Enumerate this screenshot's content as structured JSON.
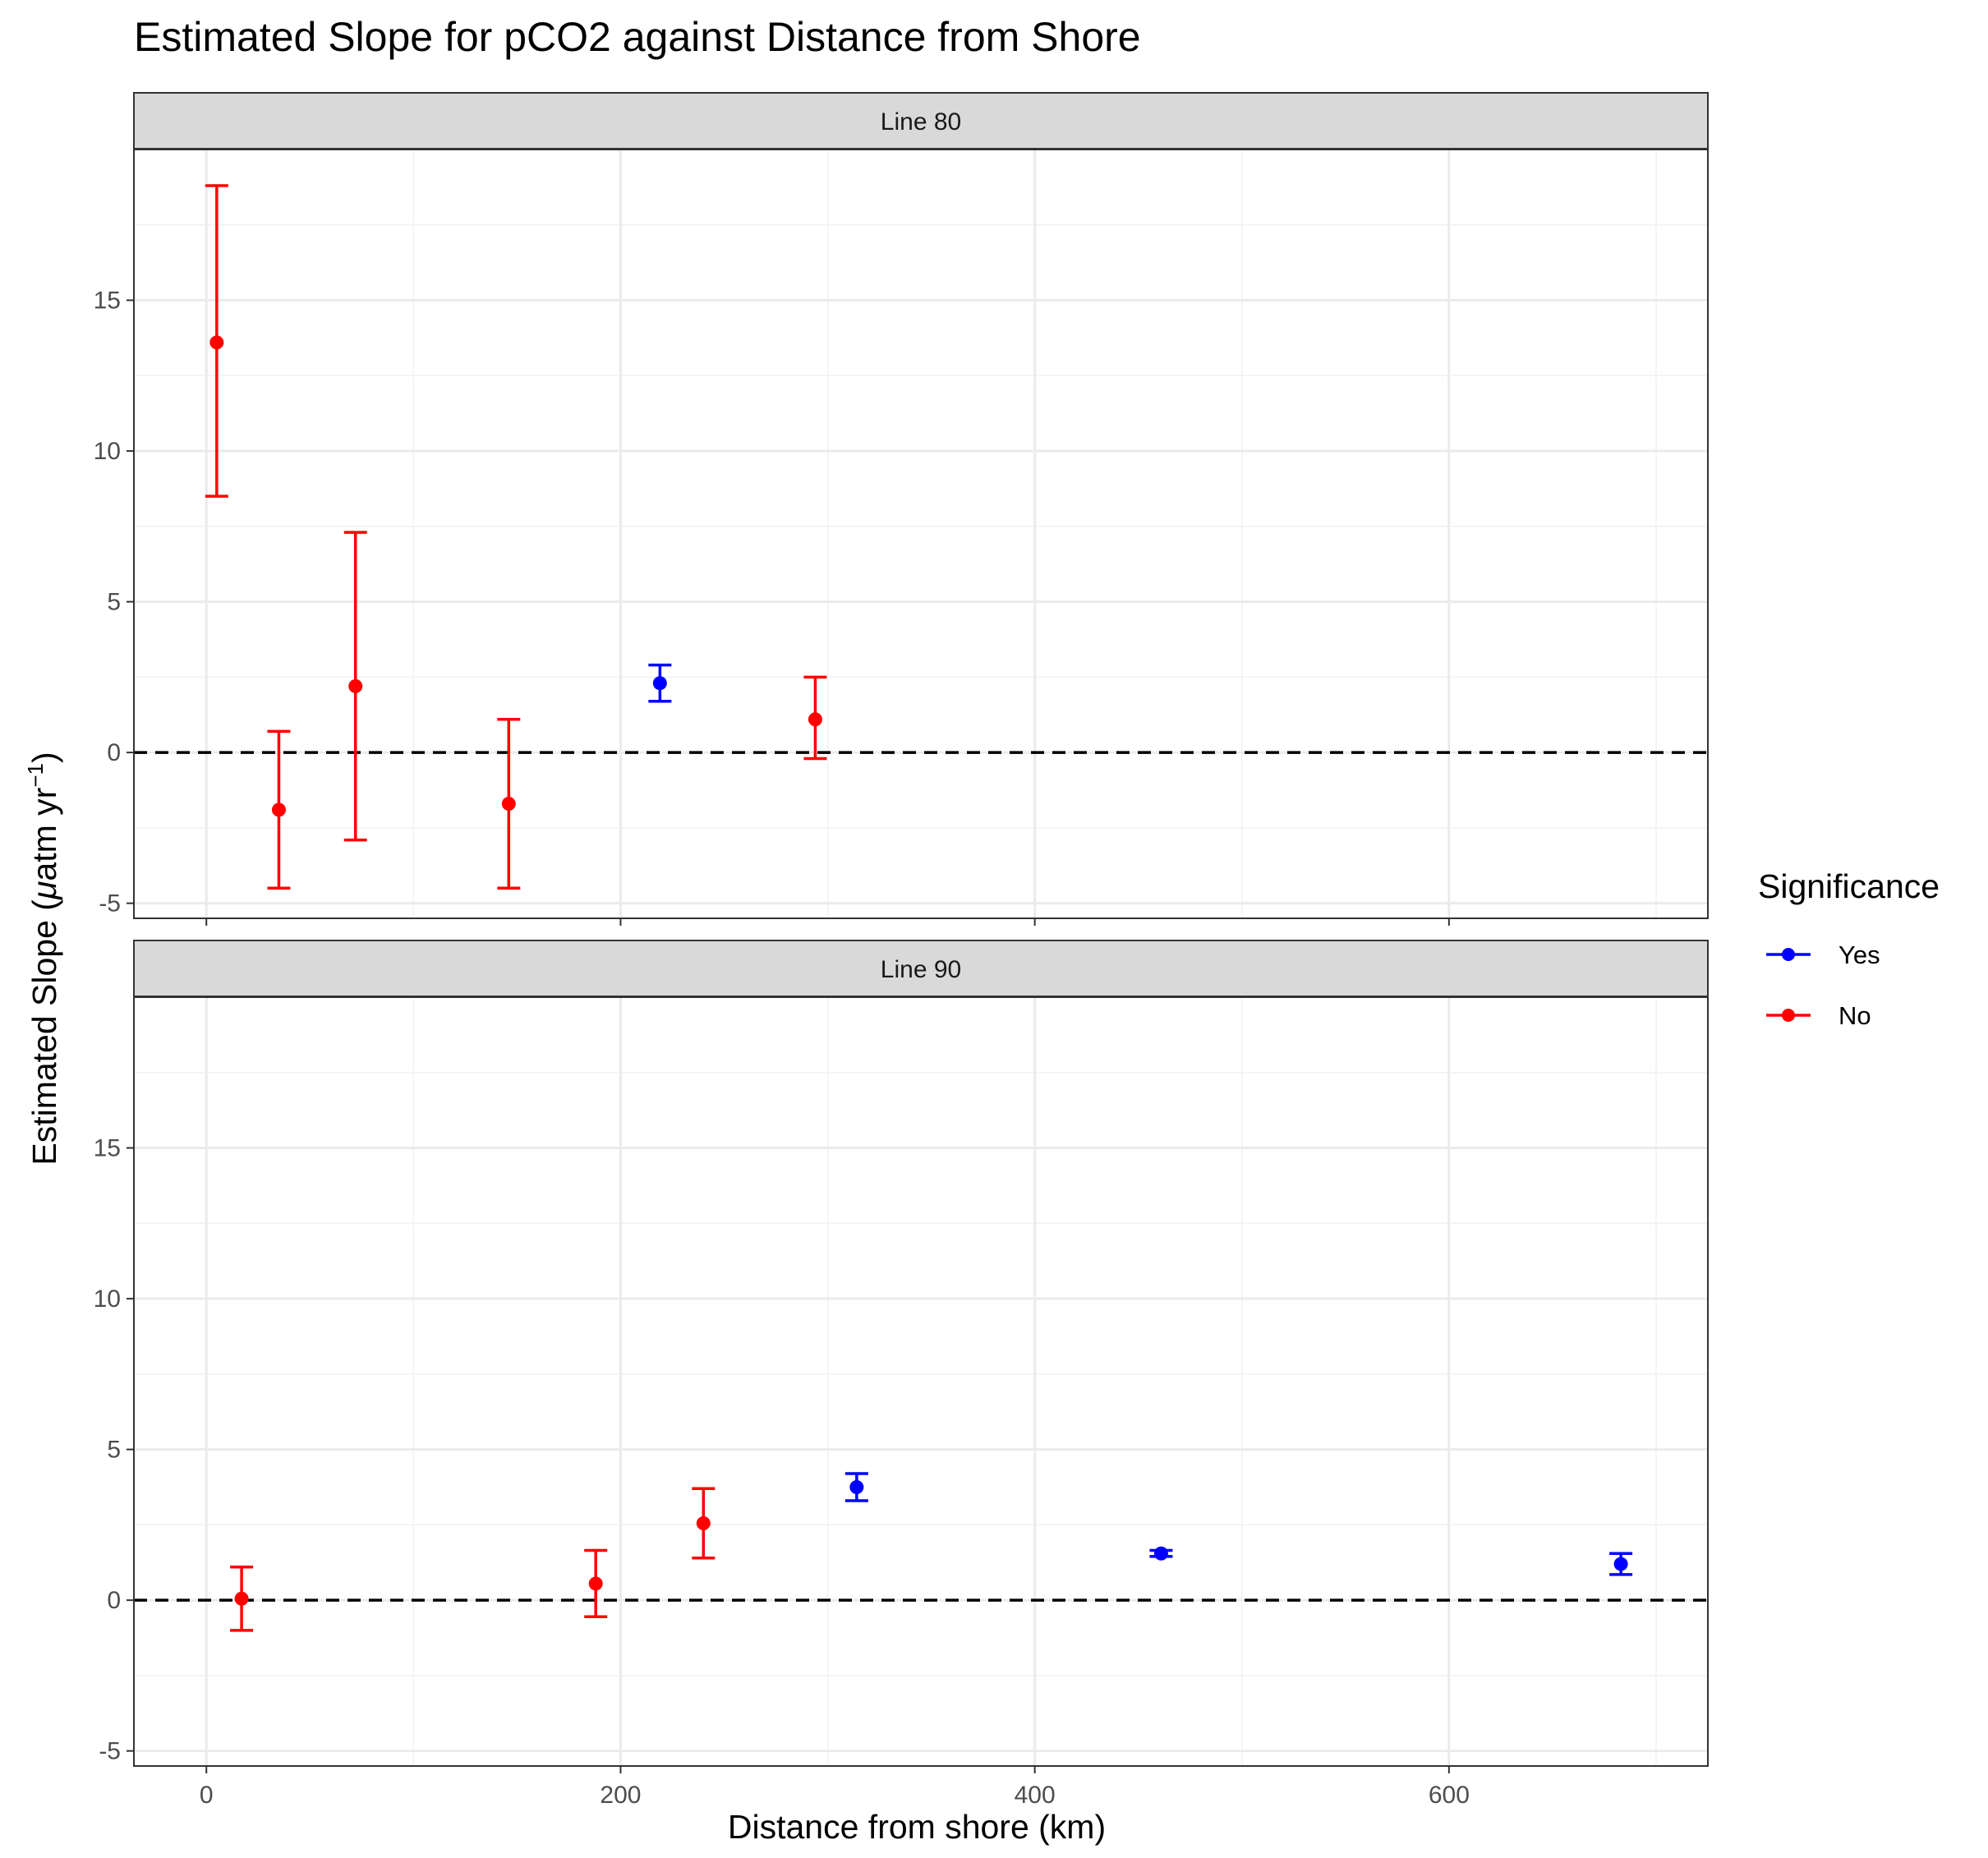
{
  "chart_data": {
    "type": "scatter",
    "title": "Estimated Slope for pCO2 against Distance from Shore",
    "xlabel": "Distance from shore (km)",
    "ylabel_main": "Estimated Slope (",
    "ylabel_mu": "μ",
    "ylabel_unit": "atm yr",
    "ylabel_sup": "−1",
    "ylabel_close": ")",
    "xlim": [
      -35,
      725
    ],
    "ylim": [
      -5.5,
      20
    ],
    "x_ticks": [
      0,
      200,
      400,
      600
    ],
    "x_tick_labels": [
      "0",
      "200",
      "400",
      "600"
    ],
    "y_ticks": [
      -5,
      0,
      5,
      10,
      15
    ],
    "y_tick_labels": [
      "-5",
      "0",
      "5",
      "10",
      "15"
    ],
    "reference_line_y": 0,
    "grid": true,
    "legend": {
      "title": "Significance",
      "position": "right",
      "items": [
        {
          "label": "Yes",
          "color": "#0000ff"
        },
        {
          "label": "No",
          "color": "#ff0000"
        }
      ]
    },
    "colors": {
      "Yes": "#0000ff",
      "No": "#ff0000"
    },
    "panels": [
      {
        "label": "Line 80",
        "points": [
          {
            "x": 5,
            "y": 13.6,
            "lower": 8.5,
            "upper": 18.8,
            "significance": "No"
          },
          {
            "x": 35,
            "y": -1.9,
            "lower": -4.5,
            "upper": 0.7,
            "significance": "No"
          },
          {
            "x": 72,
            "y": 2.2,
            "lower": -2.9,
            "upper": 7.3,
            "significance": "No"
          },
          {
            "x": 146,
            "y": -1.7,
            "lower": -4.5,
            "upper": 1.1,
            "significance": "No"
          },
          {
            "x": 219,
            "y": 2.3,
            "lower": 1.7,
            "upper": 2.9,
            "significance": "Yes"
          },
          {
            "x": 294,
            "y": 1.1,
            "lower": -0.2,
            "upper": 2.5,
            "significance": "No"
          }
        ]
      },
      {
        "label": "Line 90",
        "points": [
          {
            "x": 17,
            "y": 0.05,
            "lower": -1.0,
            "upper": 1.1,
            "significance": "No"
          },
          {
            "x": 188,
            "y": 0.55,
            "lower": -0.55,
            "upper": 1.65,
            "significance": "No"
          },
          {
            "x": 240,
            "y": 2.55,
            "lower": 1.4,
            "upper": 3.7,
            "significance": "No"
          },
          {
            "x": 314,
            "y": 3.75,
            "lower": 3.3,
            "upper": 4.2,
            "significance": "Yes"
          },
          {
            "x": 461,
            "y": 1.55,
            "lower": 1.45,
            "upper": 1.65,
            "significance": "Yes"
          },
          {
            "x": 683,
            "y": 1.2,
            "lower": 0.85,
            "upper": 1.55,
            "significance": "Yes"
          }
        ]
      }
    ]
  }
}
